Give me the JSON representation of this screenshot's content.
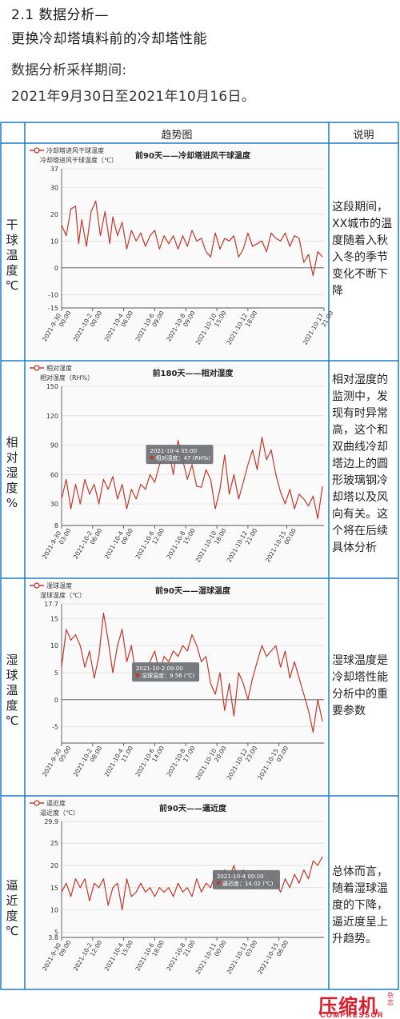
{
  "header": {
    "line1": "2.1 数据分析—",
    "line2": "更换冷却塔填料前的冷却塔性能",
    "period_label": "数据分析采样期间:",
    "period_value": "2021年9月30日至2021年10月16日。"
  },
  "table": {
    "col_trend": "趋势图",
    "col_desc": "说明",
    "rows": [
      {
        "label": [
          "干",
          "球",
          "温",
          "度",
          "℃"
        ],
        "desc": "这段期间，XX城市的温度随着入秋入冬的季节变化不断下降"
      },
      {
        "label": [
          "相",
          "对",
          "湿",
          "度",
          "%"
        ],
        "desc": "相对湿度的监测中，发现有时异常高，这个和双曲线冷却塔边上的圆形玻璃钢冷却塔以及风向有关。这个将在后续具体分析"
      },
      {
        "label": [
          "湿",
          "球",
          "温",
          "度",
          "℃"
        ],
        "desc": "湿球温度是冷却塔性能分析中的重要参数"
      },
      {
        "label": [
          "逼",
          "近",
          "度",
          "℃"
        ],
        "desc": "总体而言，随着湿球温度的下降，逼近度呈上升趋势。"
      }
    ]
  },
  "colors": {
    "line": "#c0392b",
    "border": "#1f7fc4",
    "grid": "#dcdcdc",
    "tooltip": "#6b6f73",
    "brand": "#d81e2c"
  },
  "chart_data": [
    {
      "type": "line",
      "title": "前90天——冷却塔进风干球温度",
      "legend": "冷却塔进风干球温度",
      "ylabel": "冷却塔进风干球温度（℃）",
      "ylim": [
        -15,
        37
      ],
      "yticks": [
        37,
        30,
        20,
        10,
        0,
        -10,
        -15
      ],
      "xlim": [
        0,
        16.9
      ],
      "xticks": [
        0,
        2,
        4,
        6,
        8,
        10,
        12,
        16.9
      ],
      "xtick_labels": [
        [
          "2021-9-30",
          "00:00"
        ],
        [
          "2021-10-2",
          "00:00"
        ],
        [
          "2021-10-4",
          "06:00"
        ],
        [
          "2021-10-6",
          "09:00"
        ],
        [
          "2021-10-8",
          "09:00"
        ],
        [
          "2021-10-10",
          "15:00"
        ],
        [
          "2021-10-12",
          "18:00"
        ],
        [
          "2021-10-17",
          "21:00"
        ]
      ],
      "x": [
        0,
        0.3,
        0.6,
        0.9,
        1.1,
        1.3,
        1.6,
        1.9,
        2.2,
        2.5,
        2.8,
        3.1,
        3.3,
        3.6,
        3.9,
        4.2,
        4.5,
        4.8,
        5.1,
        5.4,
        5.7,
        6.0,
        6.3,
        6.6,
        6.9,
        7.2,
        7.5,
        7.8,
        8.1,
        8.4,
        8.7,
        9.0,
        9.3,
        9.6,
        9.9,
        10.2,
        10.5,
        10.8,
        11.1,
        11.4,
        11.7,
        12.0,
        12.3,
        12.6,
        12.9,
        13.2,
        13.5,
        13.8,
        14.1,
        14.4,
        14.7,
        15.0,
        15.3,
        15.6,
        15.9,
        16.2,
        16.5,
        16.8
      ],
      "values": [
        16,
        12,
        22,
        23,
        9,
        18,
        8,
        21,
        25,
        12,
        21,
        9,
        19,
        12,
        17,
        7,
        14,
        10,
        13,
        8,
        12,
        14,
        7,
        12,
        9,
        12,
        7,
        12,
        8,
        14,
        10,
        11,
        6,
        4,
        13,
        7,
        11,
        10,
        12,
        4,
        7,
        13,
        8,
        9,
        10,
        6,
        13,
        11,
        10,
        13,
        8,
        12,
        11,
        2,
        5,
        -3,
        6,
        4
      ],
      "tooltip": null
    },
    {
      "type": "line",
      "title": "前180天——相对湿度",
      "legend": "相对湿度",
      "ylabel": "相对湿度（RH%）",
      "ylim": [
        8,
        150
      ],
      "yticks": [
        150,
        120,
        90,
        60,
        30,
        8
      ],
      "xlim": [
        0,
        16.9
      ],
      "xticks": [
        0,
        2,
        4,
        6,
        8,
        10,
        12,
        14.5
      ],
      "xtick_labels": [
        [
          "2021-9-30",
          "03:00"
        ],
        [
          "2021-10-2",
          "06:00"
        ],
        [
          "2021-10-4",
          "09:00"
        ],
        [
          "2021-10-6",
          "12:00"
        ],
        [
          "2021-10-8",
          "15:00"
        ],
        [
          "2021-10-10",
          "18:00"
        ],
        [
          "2021-10-12",
          "21:00"
        ],
        [
          "2021-10-15",
          "00:00"
        ]
      ],
      "x": [
        0,
        0.3,
        0.6,
        0.9,
        1.2,
        1.5,
        1.8,
        2.1,
        2.4,
        2.7,
        3.0,
        3.3,
        3.6,
        3.9,
        4.2,
        4.5,
        4.8,
        5.1,
        5.4,
        5.7,
        6.0,
        6.3,
        6.6,
        6.9,
        7.2,
        7.5,
        7.8,
        8.1,
        8.4,
        8.7,
        9.0,
        9.3,
        9.6,
        9.9,
        10.2,
        10.5,
        10.8,
        11.1,
        11.4,
        11.7,
        12.0,
        12.3,
        12.6,
        12.9,
        13.2,
        13.5,
        13.8,
        14.1,
        14.4,
        14.7,
        15.0,
        15.3,
        15.6,
        15.9,
        16.2,
        16.5,
        16.8
      ],
      "values": [
        35,
        55,
        25,
        50,
        30,
        55,
        40,
        50,
        30,
        55,
        45,
        58,
        35,
        50,
        25,
        45,
        35,
        50,
        45,
        60,
        52,
        70,
        80,
        85,
        60,
        95,
        75,
        55,
        70,
        48,
        47,
        65,
        55,
        25,
        45,
        80,
        40,
        60,
        35,
        52,
        70,
        85,
        65,
        98,
        75,
        85,
        60,
        42,
        30,
        45,
        25,
        40,
        35,
        28,
        38,
        15,
        48
      ],
      "tooltip": {
        "x": 7.6,
        "date": "2021-10-4 05:00",
        "text": "相对湿度：47 (RH%)"
      }
    },
    {
      "type": "line",
      "title": "前90天——湿球温度",
      "legend": "湿球温度",
      "ylabel": "湿球温度（℃）",
      "ylim": [
        -8,
        17.7
      ],
      "yticks": [
        17.7,
        15,
        10,
        5,
        0,
        -5
      ],
      "xlim": [
        0,
        16.9
      ],
      "xticks": [
        0,
        2,
        4,
        6,
        8,
        10,
        12,
        14
      ],
      "xtick_labels": [
        [
          "2021-9-30",
          "05:00"
        ],
        [
          "2021-10-2",
          "08:00"
        ],
        [
          "2021-10-4",
          "11:00"
        ],
        [
          "2021-10-6",
          "14:00"
        ],
        [
          "2021-10-8",
          "17:00"
        ],
        [
          "2021-10-10",
          "20:00"
        ],
        [
          "2021-10-12",
          "23:00"
        ],
        [
          "2021-10-15",
          "02:00"
        ]
      ],
      "x": [
        0,
        0.3,
        0.6,
        0.9,
        1.2,
        1.5,
        1.8,
        2.1,
        2.4,
        2.7,
        3.0,
        3.3,
        3.6,
        3.9,
        4.2,
        4.5,
        4.8,
        5.1,
        5.4,
        5.7,
        6.0,
        6.3,
        6.6,
        6.9,
        7.2,
        7.5,
        7.8,
        8.1,
        8.4,
        8.7,
        9.0,
        9.3,
        9.6,
        9.9,
        10.2,
        10.5,
        10.8,
        11.1,
        11.4,
        11.7,
        12.0,
        12.3,
        12.6,
        12.9,
        13.2,
        13.5,
        13.8,
        14.1,
        14.4,
        14.7,
        15.0,
        15.3,
        15.6,
        15.9,
        16.2,
        16.5,
        16.8
      ],
      "values": [
        6,
        13,
        11,
        12,
        10,
        6,
        9,
        4,
        8,
        16,
        11,
        5,
        10,
        13,
        7,
        10,
        4,
        6,
        4,
        7,
        9,
        5,
        8,
        7,
        9,
        8,
        10,
        9,
        12,
        10,
        7,
        8,
        3,
        1,
        5,
        -2,
        3,
        -3,
        5,
        3,
        0,
        4,
        7,
        10,
        8,
        9,
        10,
        6,
        9,
        4,
        7,
        4,
        1,
        -2,
        -6,
        0,
        -4
      ],
      "tooltip": {
        "x": 6.7,
        "date": "2021-10-2 09:00",
        "text": "湿球温度：9.56 (℃)"
      }
    },
    {
      "type": "line",
      "title": "前90天——逼近度",
      "legend": "逼近度",
      "ylabel": "逼近度（℃）",
      "ylim": [
        3.8,
        29.9
      ],
      "yticks": [
        29.9,
        25,
        20,
        15,
        10,
        5,
        3.8
      ],
      "xlim": [
        0,
        16.9
      ],
      "xticks": [
        0,
        2,
        4,
        6,
        8,
        10,
        12,
        14
      ],
      "xtick_labels": [
        [
          "2021-9-30",
          "09:00"
        ],
        [
          "2021-10-2",
          "12:00"
        ],
        [
          "2021-10-4",
          "15:00"
        ],
        [
          "2021-10-6",
          "18:00"
        ],
        [
          "2021-10-8",
          "21:00"
        ],
        [
          "2021-10-11",
          "00:00"
        ],
        [
          "2021-10-13",
          "03:00"
        ],
        [
          "2021-10-15",
          "06:00"
        ]
      ],
      "x": [
        0,
        0.3,
        0.6,
        0.9,
        1.2,
        1.5,
        1.8,
        2.1,
        2.4,
        2.7,
        3.0,
        3.3,
        3.6,
        3.9,
        4.2,
        4.5,
        4.8,
        5.1,
        5.4,
        5.7,
        6.0,
        6.3,
        6.6,
        6.9,
        7.2,
        7.5,
        7.8,
        8.1,
        8.4,
        8.7,
        9.0,
        9.3,
        9.6,
        9.9,
        10.2,
        10.5,
        10.8,
        11.1,
        11.4,
        11.7,
        12.0,
        12.3,
        12.6,
        12.9,
        13.2,
        13.5,
        13.8,
        14.1,
        14.4,
        14.7,
        15.0,
        15.3,
        15.6,
        15.9,
        16.2,
        16.5,
        16.8
      ],
      "values": [
        14,
        16,
        13,
        17,
        15,
        17,
        12,
        16,
        15,
        17,
        11,
        15,
        16,
        10,
        17,
        13,
        14,
        16,
        14,
        15,
        13,
        15,
        14,
        15,
        13,
        16,
        14,
        15,
        13,
        17,
        14,
        16,
        15,
        18,
        16,
        19,
        17,
        20,
        16,
        19,
        17,
        16,
        18,
        16,
        15,
        17,
        16,
        14,
        17,
        15,
        18,
        16,
        19,
        17,
        21,
        20,
        22
      ],
      "tooltip": {
        "x": 11.9,
        "date": "2021-10-4 00:00",
        "text": "逼近度：14.02 (℃)"
      }
    }
  ],
  "brand": {
    "name_cn": "压缩机",
    "name_en": "COMPRESSOR",
    "magazine": "杂志"
  }
}
